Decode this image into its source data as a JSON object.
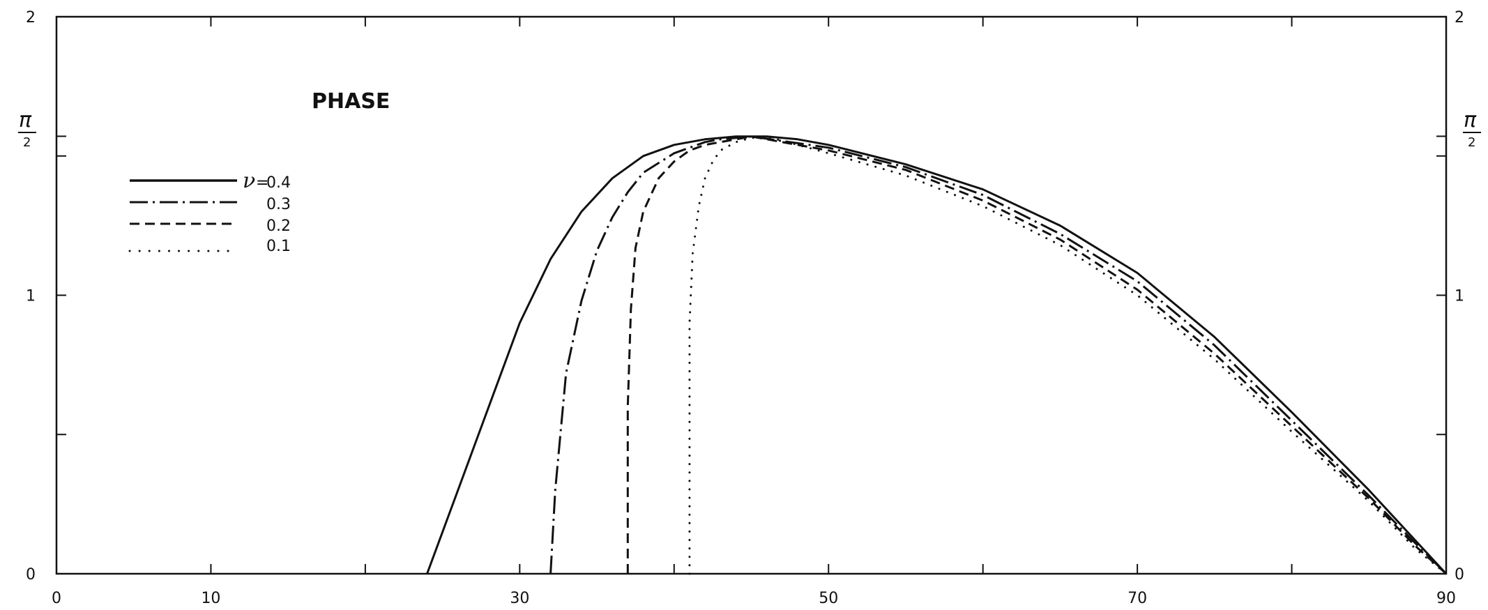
{
  "chart_data": {
    "type": "line",
    "title": "PHASE",
    "xlabel": "",
    "ylabel": "",
    "xlim": [
      0,
      90
    ],
    "ylim": [
      0,
      2
    ],
    "grid": false,
    "x_ticks": [
      0,
      10,
      20,
      30,
      40,
      50,
      60,
      70,
      80,
      90
    ],
    "x_tick_labels": [
      "0",
      "10",
      "",
      "30",
      "",
      "50",
      "",
      "70",
      "",
      "90"
    ],
    "y_ticks": [
      0,
      0.5,
      1,
      1.5,
      1.5708,
      2
    ],
    "y_tick_labels_left": [
      "0",
      "",
      "1",
      "",
      "π/2",
      "2"
    ],
    "y_tick_labels_right": [
      "0",
      "",
      "1",
      "",
      "π/2",
      "2"
    ],
    "pi_half": {
      "numerator": "π",
      "denominator": "2",
      "value": 1.5708
    },
    "legend": {
      "position": "upper-left",
      "symbol": "ν",
      "equals": "=",
      "entries": [
        "0.4",
        "0.3",
        "0.2",
        "0.1"
      ]
    },
    "series": [
      {
        "name": "0.4",
        "style": "solid",
        "x": [
          24,
          26,
          28,
          30,
          32,
          34,
          36,
          38,
          40,
          42,
          44,
          46,
          48,
          50,
          55,
          60,
          65,
          70,
          75,
          80,
          85,
          88,
          90
        ],
        "y": [
          0,
          0.3,
          0.6,
          0.9,
          1.13,
          1.3,
          1.42,
          1.5,
          1.54,
          1.56,
          1.57,
          1.57,
          1.56,
          1.54,
          1.47,
          1.38,
          1.25,
          1.08,
          0.85,
          0.58,
          0.3,
          0.12,
          0
        ]
      },
      {
        "name": "0.3",
        "style": "dashdot",
        "x": [
          32,
          32.3,
          33,
          34,
          35,
          36,
          37,
          38,
          40,
          42,
          43,
          45,
          50,
          55,
          60,
          65,
          70,
          75,
          80,
          85,
          88,
          90
        ],
        "y": [
          0,
          0.3,
          0.72,
          0.98,
          1.16,
          1.28,
          1.37,
          1.44,
          1.51,
          1.55,
          1.56,
          1.57,
          1.53,
          1.46,
          1.36,
          1.22,
          1.05,
          0.82,
          0.55,
          0.28,
          0.11,
          0
        ]
      },
      {
        "name": "0.2",
        "style": "dashed",
        "x": [
          37,
          37,
          37.2,
          37.5,
          38,
          39,
          40,
          41,
          42,
          44,
          45,
          50,
          55,
          60,
          65,
          70,
          75,
          80,
          85,
          88,
          90
        ],
        "y": [
          0,
          0.6,
          0.95,
          1.17,
          1.3,
          1.42,
          1.48,
          1.52,
          1.54,
          1.56,
          1.57,
          1.52,
          1.45,
          1.34,
          1.2,
          1.02,
          0.79,
          0.53,
          0.27,
          0.1,
          0
        ]
      },
      {
        "name": "0.1",
        "style": "dotted",
        "x": [
          41,
          41,
          41.2,
          41.6,
          42,
          42.5,
          43,
          44,
          45,
          46,
          50,
          55,
          60,
          65,
          70,
          75,
          80,
          85,
          88,
          90
        ],
        "y": [
          0,
          0.9,
          1.15,
          1.32,
          1.42,
          1.48,
          1.52,
          1.55,
          1.565,
          1.57,
          1.51,
          1.43,
          1.32,
          1.18,
          1.0,
          0.77,
          0.51,
          0.26,
          0.09,
          0
        ]
      }
    ]
  }
}
